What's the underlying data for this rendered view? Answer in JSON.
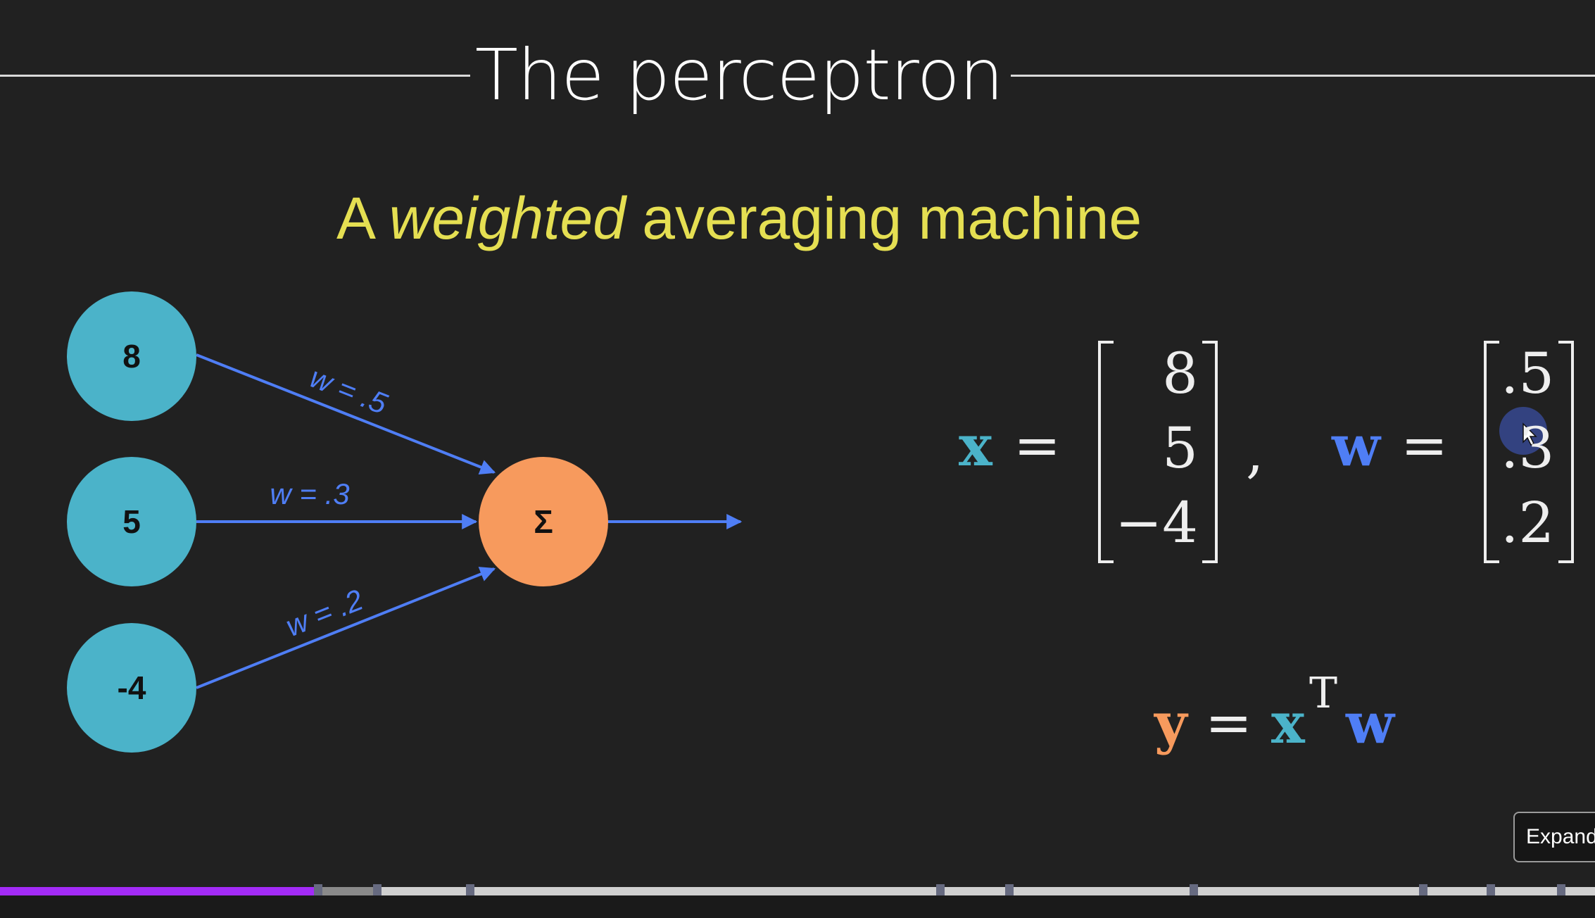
{
  "slide": {
    "title": "The perceptron",
    "subtitle": {
      "prefix": "A ",
      "emphasis": "weighted",
      "suffix": " averaging machine"
    }
  },
  "diagram": {
    "inputs": [
      "8",
      "5",
      "-4"
    ],
    "weights": [
      "w = .5",
      "w = .3",
      "w = .2"
    ],
    "sum_symbol": "Σ"
  },
  "equations": {
    "x_label": "x",
    "x_values": [
      "8",
      "5",
      "−4"
    ],
    "w_label": "w",
    "w_values": [
      ".5",
      ".3",
      ".2"
    ],
    "y_label": "y",
    "transpose": "T",
    "equals": "=",
    "comma": ","
  },
  "player": {
    "expand_button": "Expanded",
    "progress_fraction": 0.2
  },
  "colors": {
    "background": "#212121",
    "input_node": "#4bb3c9",
    "sum_node": "#f79a5d",
    "arrow": "#4f7ef5",
    "subtitle": "#e5df52",
    "x_vector": "#4bb3c9",
    "w_vector": "#4f7ef5",
    "y_vector": "#f79a5d",
    "progress_played": "#a32bf7"
  }
}
